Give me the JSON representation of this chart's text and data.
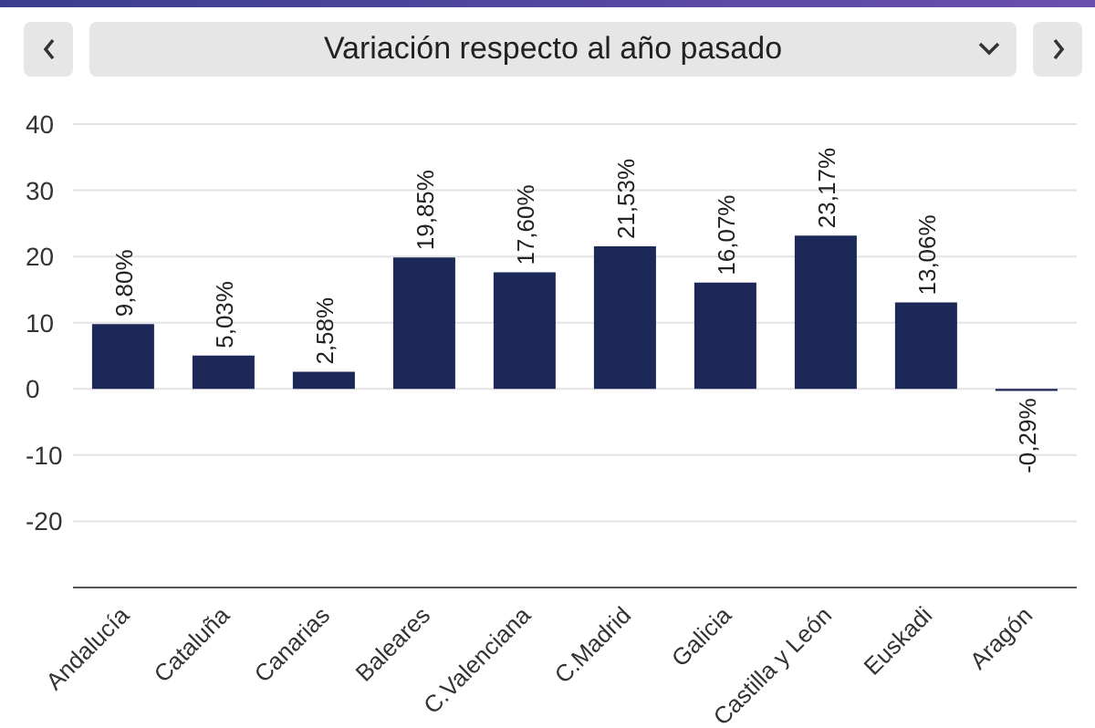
{
  "chart_data": {
    "type": "bar",
    "title": "Variación respecto al año pasado",
    "categories": [
      "Andalucía",
      "Cataluña",
      "Canarias",
      "Baleares",
      "C.Valenciana",
      "C.Madrid",
      "Galicia",
      "Castilla y León",
      "Euskadi",
      "Aragón"
    ],
    "values": [
      9.8,
      5.03,
      2.58,
      19.85,
      17.6,
      21.53,
      16.07,
      23.17,
      13.06,
      -0.29
    ],
    "value_labels": [
      "9,80%",
      "5,03%",
      "2,58%",
      "19,85%",
      "17,60%",
      "21,53%",
      "16,07%",
      "23,17%",
      "13,06%",
      "-0,29%"
    ],
    "color": "#1c2857",
    "ylim": [
      -30,
      40
    ],
    "yticks": [
      {
        "value": -30,
        "label": null
      },
      -20,
      -10,
      0,
      10,
      20,
      30,
      40
    ],
    "grid": "y",
    "legend": false
  }
}
